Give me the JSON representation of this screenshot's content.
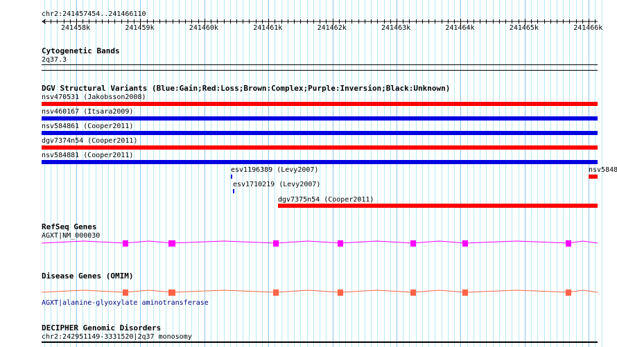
{
  "ruler": {
    "location": "chr2:241457454..241466110",
    "ticks": [
      "241458k",
      "241459k",
      "241460k",
      "241461k",
      "241462k",
      "241463k",
      "241464k",
      "241465k",
      "241466k"
    ]
  },
  "cyto": {
    "title": "Cytogenetic Bands",
    "band": "2q37.3"
  },
  "dgv": {
    "title": "DGV Structural Variants (Blue:Gain;Red:Loss;Brown:Complex;Purple:Inversion;Black:Unknown)",
    "features": [
      {
        "label": "nsv470531 (Jakobsson2008)",
        "type": "loss"
      },
      {
        "label": "nsv460167 (Itsara2009)",
        "type": "gain"
      },
      {
        "label": "nsv584861 (Cooper2011)",
        "type": "gain"
      },
      {
        "label": "dgv7374n54 (Cooper2011)",
        "type": "loss"
      },
      {
        "label": "nsv584881 (Cooper2011)",
        "type": "gain"
      },
      {
        "label": "esv1196389 (Levy2007)",
        "type": "gain"
      },
      {
        "label": "nsv5848",
        "type": "loss"
      },
      {
        "label": "esv1710219 (Levy2007)",
        "type": "gain"
      },
      {
        "label": "dgv7375n54 (Cooper2011)",
        "type": "loss"
      }
    ]
  },
  "refseq": {
    "title": "RefSeq Genes",
    "gene": "AGXT|NM_000030",
    "color": "#ff00ff"
  },
  "omim": {
    "title": "Disease Genes (OMIM)",
    "gene": "AGXT|alanine-glyoxylate aminotransferase",
    "color": "#ff6347"
  },
  "decipher": {
    "title": "DECIPHER Genomic Disorders",
    "label": "chr2:242951149-3331520|2q37 monosomy"
  }
}
